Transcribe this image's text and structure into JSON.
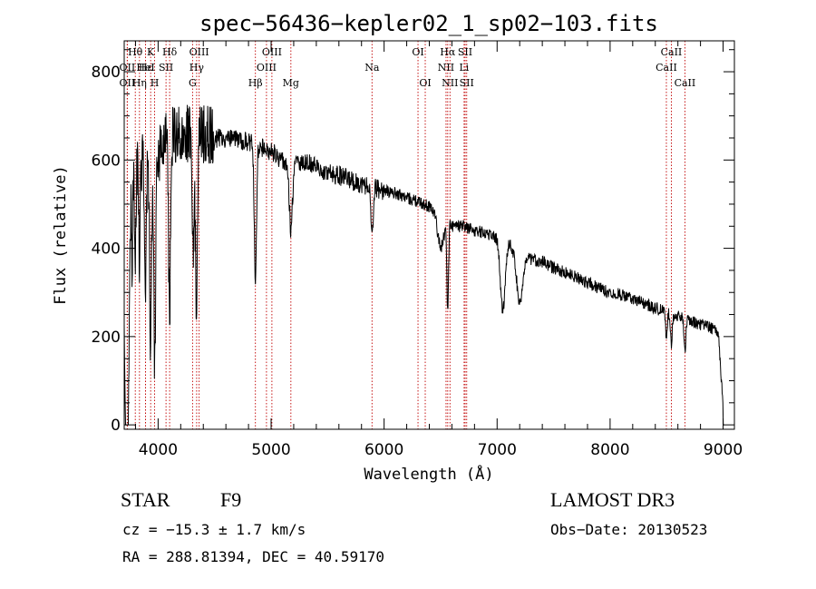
{
  "chart_data": {
    "type": "line",
    "title": "spec−56436−kepler02_1_sp02−103.fits",
    "xlabel": "Wavelength (Å)",
    "ylabel": "Flux (relative)",
    "xlim": [
      3700,
      9100
    ],
    "ylim": [
      -10,
      870
    ],
    "xticks": [
      4000,
      5000,
      6000,
      7000,
      8000,
      9000
    ],
    "yticks": [
      0,
      200,
      400,
      600,
      800
    ],
    "series": [
      {
        "name": "flux",
        "continuum": [
          [
            3700,
            300
          ],
          [
            3760,
            560
          ],
          [
            3800,
            580
          ],
          [
            3900,
            600
          ],
          [
            4000,
            610
          ],
          [
            4100,
            650
          ],
          [
            4200,
            665
          ],
          [
            4300,
            660
          ],
          [
            4400,
            655
          ],
          [
            4500,
            650
          ],
          [
            4600,
            648
          ],
          [
            4700,
            645
          ],
          [
            4800,
            640
          ],
          [
            4900,
            630
          ],
          [
            5000,
            620
          ],
          [
            5100,
            600
          ],
          [
            5200,
            590
          ],
          [
            5300,
            595
          ],
          [
            5400,
            585
          ],
          [
            5500,
            570
          ],
          [
            5600,
            565
          ],
          [
            5700,
            555
          ],
          [
            5800,
            545
          ],
          [
            5900,
            540
          ],
          [
            6000,
            530
          ],
          [
            6100,
            525
          ],
          [
            6200,
            515
          ],
          [
            6300,
            505
          ],
          [
            6400,
            495
          ],
          [
            6500,
            485
          ],
          [
            6600,
            450
          ],
          [
            6700,
            450
          ],
          [
            6800,
            440
          ],
          [
            6900,
            435
          ],
          [
            7000,
            425
          ],
          [
            7100,
            415
          ],
          [
            7200,
            390
          ],
          [
            7300,
            375
          ],
          [
            7400,
            370
          ],
          [
            7500,
            355
          ],
          [
            7600,
            345
          ],
          [
            7700,
            335
          ],
          [
            7800,
            322
          ],
          [
            7900,
            310
          ],
          [
            8000,
            300
          ],
          [
            8100,
            295
          ],
          [
            8200,
            285
          ],
          [
            8300,
            275
          ],
          [
            8400,
            265
          ],
          [
            8500,
            255
          ],
          [
            8600,
            245
          ],
          [
            8700,
            235
          ],
          [
            8800,
            228
          ],
          [
            8900,
            220
          ],
          [
            8960,
            205
          ],
          [
            9000,
            40
          ]
        ],
        "absorptions": [
          [
            3727,
            620,
            20
          ],
          [
            3770,
            180,
            8
          ],
          [
            3797,
            220,
            8
          ],
          [
            3835,
            260,
            8
          ],
          [
            3889,
            300,
            10
          ],
          [
            3934,
            420,
            12
          ],
          [
            3970,
            480,
            12
          ],
          [
            4101,
            420,
            12
          ],
          [
            4308,
            260,
            14
          ],
          [
            4340,
            380,
            14
          ],
          [
            4861,
            300,
            14
          ],
          [
            5175,
            150,
            20
          ],
          [
            5893,
            120,
            14
          ],
          [
            6563,
            200,
            10
          ],
          [
            6500,
            80,
            40
          ],
          [
            7050,
            160,
            30
          ],
          [
            7200,
            110,
            40
          ],
          [
            8498,
            60,
            10
          ],
          [
            8542,
            70,
            10
          ],
          [
            8662,
            70,
            10
          ]
        ]
      }
    ],
    "lines": [
      {
        "name": "Hθ",
        "wave": 3798,
        "row": 1
      },
      {
        "name": "OII",
        "wave": 3727,
        "row": 2
      },
      {
        "name": "OII",
        "wave": 3727,
        "row": 3
      },
      {
        "name": "Hη",
        "wave": 3835,
        "row": 3
      },
      {
        "name": "Hε",
        "wave": 3889,
        "row": 2
      },
      {
        "name": "HeI",
        "wave": 3889,
        "row": 2
      },
      {
        "name": "K",
        "wave": 3934,
        "row": 1
      },
      {
        "name": "H",
        "wave": 3969,
        "row": 3
      },
      {
        "name": "SII",
        "wave": 4070,
        "row": 2
      },
      {
        "name": "Hδ",
        "wave": 4102,
        "row": 1
      },
      {
        "name": "OIII",
        "wave": 4363,
        "row": 1
      },
      {
        "name": "Hγ",
        "wave": 4341,
        "row": 2
      },
      {
        "name": "G",
        "wave": 4305,
        "row": 3
      },
      {
        "name": "Hβ",
        "wave": 4861,
        "row": 3
      },
      {
        "name": "OIII",
        "wave": 4959,
        "row": 2
      },
      {
        "name": "OIII",
        "wave": 5007,
        "row": 1
      },
      {
        "name": "Mg",
        "wave": 5175,
        "row": 3
      },
      {
        "name": "Na",
        "wave": 5893,
        "row": 2
      },
      {
        "name": "OI",
        "wave": 6300,
        "row": 1
      },
      {
        "name": "OI",
        "wave": 6364,
        "row": 3
      },
      {
        "name": "Hα",
        "wave": 6563,
        "row": 1
      },
      {
        "name": "NII",
        "wave": 6548,
        "row": 2
      },
      {
        "name": "NII",
        "wave": 6583,
        "row": 3
      },
      {
        "name": "SII",
        "wave": 6717,
        "row": 1
      },
      {
        "name": "Li",
        "wave": 6708,
        "row": 2
      },
      {
        "name": "SII",
        "wave": 6731,
        "row": 3
      },
      {
        "name": "CaII",
        "wave": 8542,
        "row": 1
      },
      {
        "name": "CaII",
        "wave": 8498,
        "row": 2
      },
      {
        "name": "CaII",
        "wave": 8662,
        "row": 3
      }
    ]
  },
  "info": {
    "object_class": "STAR",
    "subclass": "F9",
    "survey": "LAMOST DR3",
    "redshift": "cz = −15.3 ± 1.7 km/s",
    "obs_date": "Obs−Date: 20130523",
    "coords": "RA = 288.81394, DEC =  40.59170"
  }
}
